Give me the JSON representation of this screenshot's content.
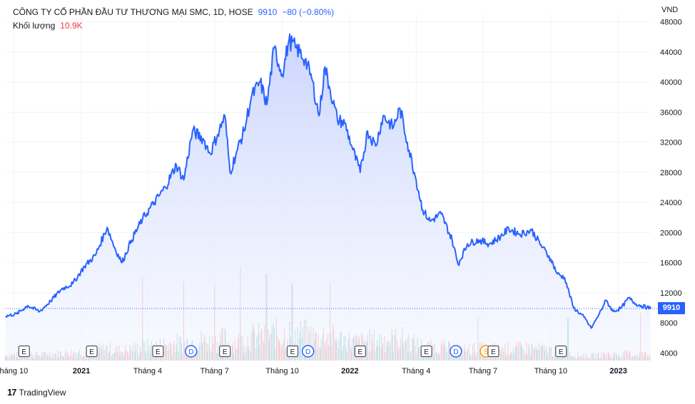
{
  "header": {
    "symbol": "CÔNG TY CỔ PHẦN ĐẦU TƯ THƯƠNG MẠI SMC, 1D, HOSE",
    "price": "9910",
    "change": "−80 (−0.80%)",
    "volume_label": "Khối lượng",
    "volume_value": "10.9K",
    "currency": "VND",
    "last_price_tag": "9910",
    "brand": "TradingView",
    "brand_logo": "17"
  },
  "colors": {
    "line": "#2962ff",
    "area_top": "#c9d4fd",
    "area_bottom": "#f4f6ff",
    "volume_up": "#26a69a",
    "volume_down": "#ef5350"
  },
  "chart_data": {
    "type": "area",
    "x_range": [
      "2020-09-20",
      "2023-02-14"
    ],
    "y_range": [
      3000,
      49000
    ],
    "y_ticks": [
      "48000",
      "44000",
      "40000",
      "36000",
      "32000",
      "28000",
      "24000",
      "20000",
      "16000",
      "12000",
      "8000",
      "4000"
    ],
    "y_tick_values": [
      48000,
      44000,
      40000,
      36000,
      32000,
      28000,
      24000,
      20000,
      16000,
      12000,
      8000,
      4000
    ],
    "x_ticks": [
      {
        "label": "háng 10",
        "date": "2020-10-01",
        "year": false
      },
      {
        "label": "2021",
        "date": "2021-01-01",
        "year": true
      },
      {
        "label": "Tháng 4",
        "date": "2021-04-01",
        "year": false
      },
      {
        "label": "Tháng 7",
        "date": "2021-07-01",
        "year": false
      },
      {
        "label": "Tháng 10",
        "date": "2021-10-01",
        "year": false
      },
      {
        "label": "2022",
        "date": "2022-01-01",
        "year": true
      },
      {
        "label": "Tháng 4",
        "date": "2022-04-01",
        "year": false
      },
      {
        "label": "Tháng 7",
        "date": "2022-07-01",
        "year": false
      },
      {
        "label": "Tháng 10",
        "date": "2022-10-01",
        "year": false
      },
      {
        "label": "2023",
        "date": "2023-01-01",
        "year": true
      }
    ],
    "last_value": 9910,
    "price": [
      [
        "2020-09-20",
        8900
      ],
      [
        "2020-10-05",
        9200
      ],
      [
        "2020-10-20",
        10300
      ],
      [
        "2020-11-05",
        9500
      ],
      [
        "2020-11-20",
        10900
      ],
      [
        "2020-12-05",
        12500
      ],
      [
        "2020-12-20",
        13200
      ],
      [
        "2021-01-05",
        15500
      ],
      [
        "2021-01-20",
        17000
      ],
      [
        "2021-02-05",
        20700
      ],
      [
        "2021-02-15",
        18000
      ],
      [
        "2021-02-25",
        16000
      ],
      [
        "2021-03-10",
        19000
      ],
      [
        "2021-03-25",
        21800
      ],
      [
        "2021-04-10",
        24000
      ],
      [
        "2021-04-25",
        26000
      ],
      [
        "2021-05-10",
        29000
      ],
      [
        "2021-05-20",
        27000
      ],
      [
        "2021-06-01",
        33500
      ],
      [
        "2021-06-15",
        32500
      ],
      [
        "2021-06-25",
        30500
      ],
      [
        "2021-07-05",
        33000
      ],
      [
        "2021-07-15",
        35500
      ],
      [
        "2021-07-22",
        28000
      ],
      [
        "2021-08-01",
        31000
      ],
      [
        "2021-08-10",
        33500
      ],
      [
        "2021-08-20",
        38000
      ],
      [
        "2021-09-01",
        40000
      ],
      [
        "2021-09-10",
        37000
      ],
      [
        "2021-09-20",
        44500
      ],
      [
        "2021-10-01",
        41000
      ],
      [
        "2021-10-10",
        45500
      ],
      [
        "2021-10-20",
        44500
      ],
      [
        "2021-11-01",
        43000
      ],
      [
        "2021-11-10",
        40500
      ],
      [
        "2021-11-20",
        35500
      ],
      [
        "2021-11-28",
        42000
      ],
      [
        "2021-12-05",
        39000
      ],
      [
        "2021-12-15",
        35000
      ],
      [
        "2021-12-25",
        34500
      ],
      [
        "2022-01-05",
        31000
      ],
      [
        "2022-01-15",
        28000
      ],
      [
        "2022-01-25",
        33500
      ],
      [
        "2022-02-05",
        31500
      ],
      [
        "2022-02-15",
        35500
      ],
      [
        "2022-03-01",
        34000
      ],
      [
        "2022-03-10",
        36500
      ],
      [
        "2022-03-20",
        32000
      ],
      [
        "2022-04-01",
        27000
      ],
      [
        "2022-04-10",
        23000
      ],
      [
        "2022-04-20",
        21500
      ],
      [
        "2022-05-05",
        22500
      ],
      [
        "2022-05-20",
        19000
      ],
      [
        "2022-05-28",
        15800
      ],
      [
        "2022-06-10",
        18500
      ],
      [
        "2022-06-25",
        19000
      ],
      [
        "2022-07-10",
        18500
      ],
      [
        "2022-07-25",
        19500
      ],
      [
        "2022-08-05",
        20500
      ],
      [
        "2022-08-20",
        19800
      ],
      [
        "2022-09-05",
        20300
      ],
      [
        "2022-09-20",
        18000
      ],
      [
        "2022-10-01",
        16500
      ],
      [
        "2022-10-10",
        14500
      ],
      [
        "2022-10-20",
        14000
      ],
      [
        "2022-11-01",
        10000
      ],
      [
        "2022-11-15",
        8800
      ],
      [
        "2022-11-25",
        7300
      ],
      [
        "2022-12-05",
        9000
      ],
      [
        "2022-12-15",
        11000
      ],
      [
        "2022-12-25",
        9500
      ],
      [
        "2023-01-05",
        10000
      ],
      [
        "2023-01-15",
        11300
      ],
      [
        "2023-01-25",
        10500
      ],
      [
        "2023-02-14",
        9910
      ]
    ],
    "volume_markers": [
      {
        "date": "2021-03-25",
        "value": 14000
      },
      {
        "date": "2021-05-20",
        "value": 13500
      },
      {
        "date": "2021-07-01",
        "value": 13000
      },
      {
        "date": "2021-08-05",
        "value": 15500
      },
      {
        "date": "2021-09-10",
        "value": 14500
      },
      {
        "date": "2021-10-15",
        "value": 13200
      },
      {
        "date": "2021-12-05",
        "value": 13300
      },
      {
        "date": "2022-06-25",
        "value": 8700
      },
      {
        "date": "2022-10-25",
        "value": 8600
      },
      {
        "date": "2023-02-01",
        "value": 9300
      }
    ]
  },
  "events": [
    {
      "date": "2020-10-15",
      "letter": "E",
      "kind": "earnings"
    },
    {
      "date": "2021-01-15",
      "letter": "E",
      "kind": "earnings"
    },
    {
      "date": "2021-04-15",
      "letter": "E",
      "kind": "earnings"
    },
    {
      "date": "2021-05-30",
      "letter": "D",
      "kind": "dividend"
    },
    {
      "date": "2021-07-15",
      "letter": "E",
      "kind": "earnings"
    },
    {
      "date": "2021-10-15",
      "letter": "E",
      "kind": "earnings"
    },
    {
      "date": "2021-11-05",
      "letter": "D",
      "kind": "dividend"
    },
    {
      "date": "2022-01-15",
      "letter": "E",
      "kind": "earnings"
    },
    {
      "date": "2022-04-15",
      "letter": "E",
      "kind": "earnings"
    },
    {
      "date": "2022-05-25",
      "letter": "D",
      "kind": "dividend"
    },
    {
      "date": "2022-07-05",
      "letter": "S",
      "kind": "split"
    },
    {
      "date": "2022-07-15",
      "letter": "E",
      "kind": "earnings"
    },
    {
      "date": "2022-10-15",
      "letter": "E",
      "kind": "earnings"
    }
  ]
}
